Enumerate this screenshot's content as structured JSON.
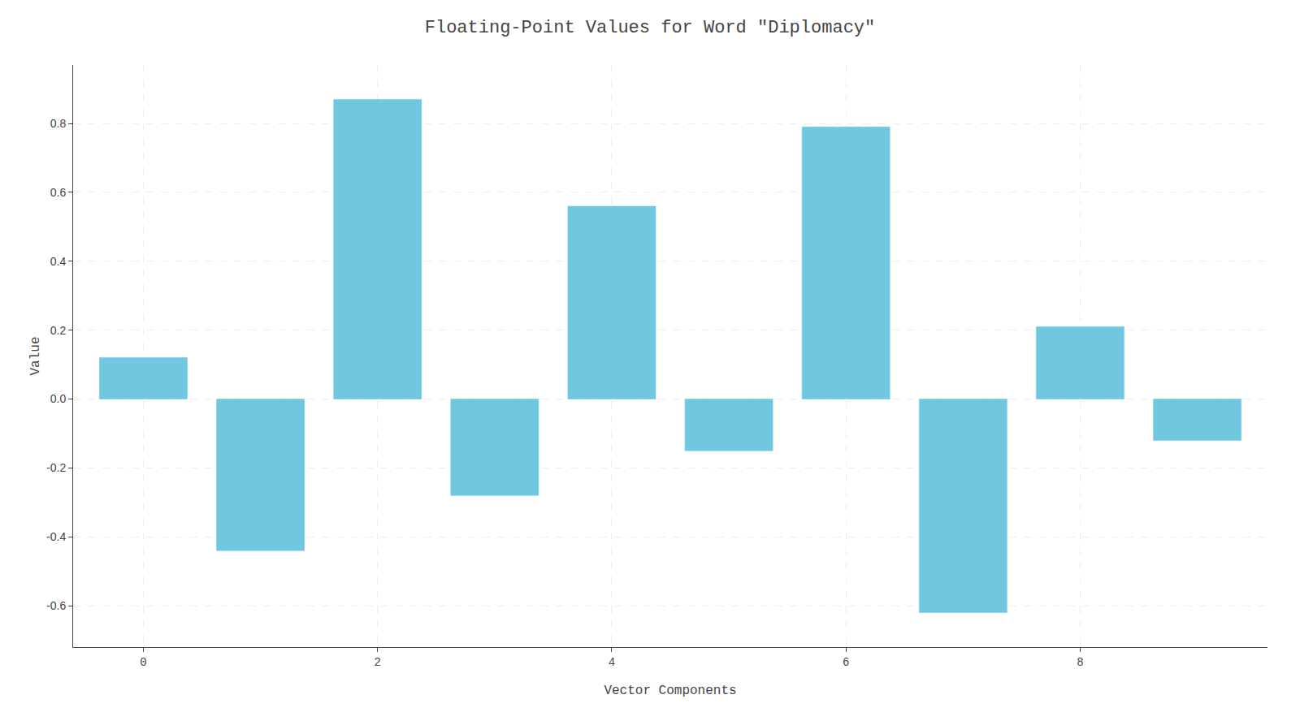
{
  "chart_data": {
    "type": "bar",
    "title": "Floating-Point Values for Word \"Diplomacy\"",
    "xlabel": "Vector Components",
    "ylabel": "Value",
    "x": [
      0,
      1,
      2,
      3,
      4,
      5,
      6,
      7,
      8,
      9
    ],
    "values": [
      0.12,
      -0.44,
      0.87,
      -0.28,
      0.56,
      -0.15,
      0.79,
      -0.62,
      0.21,
      -0.12
    ],
    "color": "#6FC8E0",
    "xlim": [
      -0.6,
      9.6
    ],
    "xticks": [
      0,
      2,
      4,
      6,
      8
    ],
    "ylim": [
      -0.72,
      0.97
    ],
    "yticks": [
      -0.6,
      -0.4,
      -0.2,
      {
        "value": 0,
        "label": "0.0"
      },
      0.2,
      0.4,
      0.6,
      0.8
    ],
    "grid": true
  }
}
